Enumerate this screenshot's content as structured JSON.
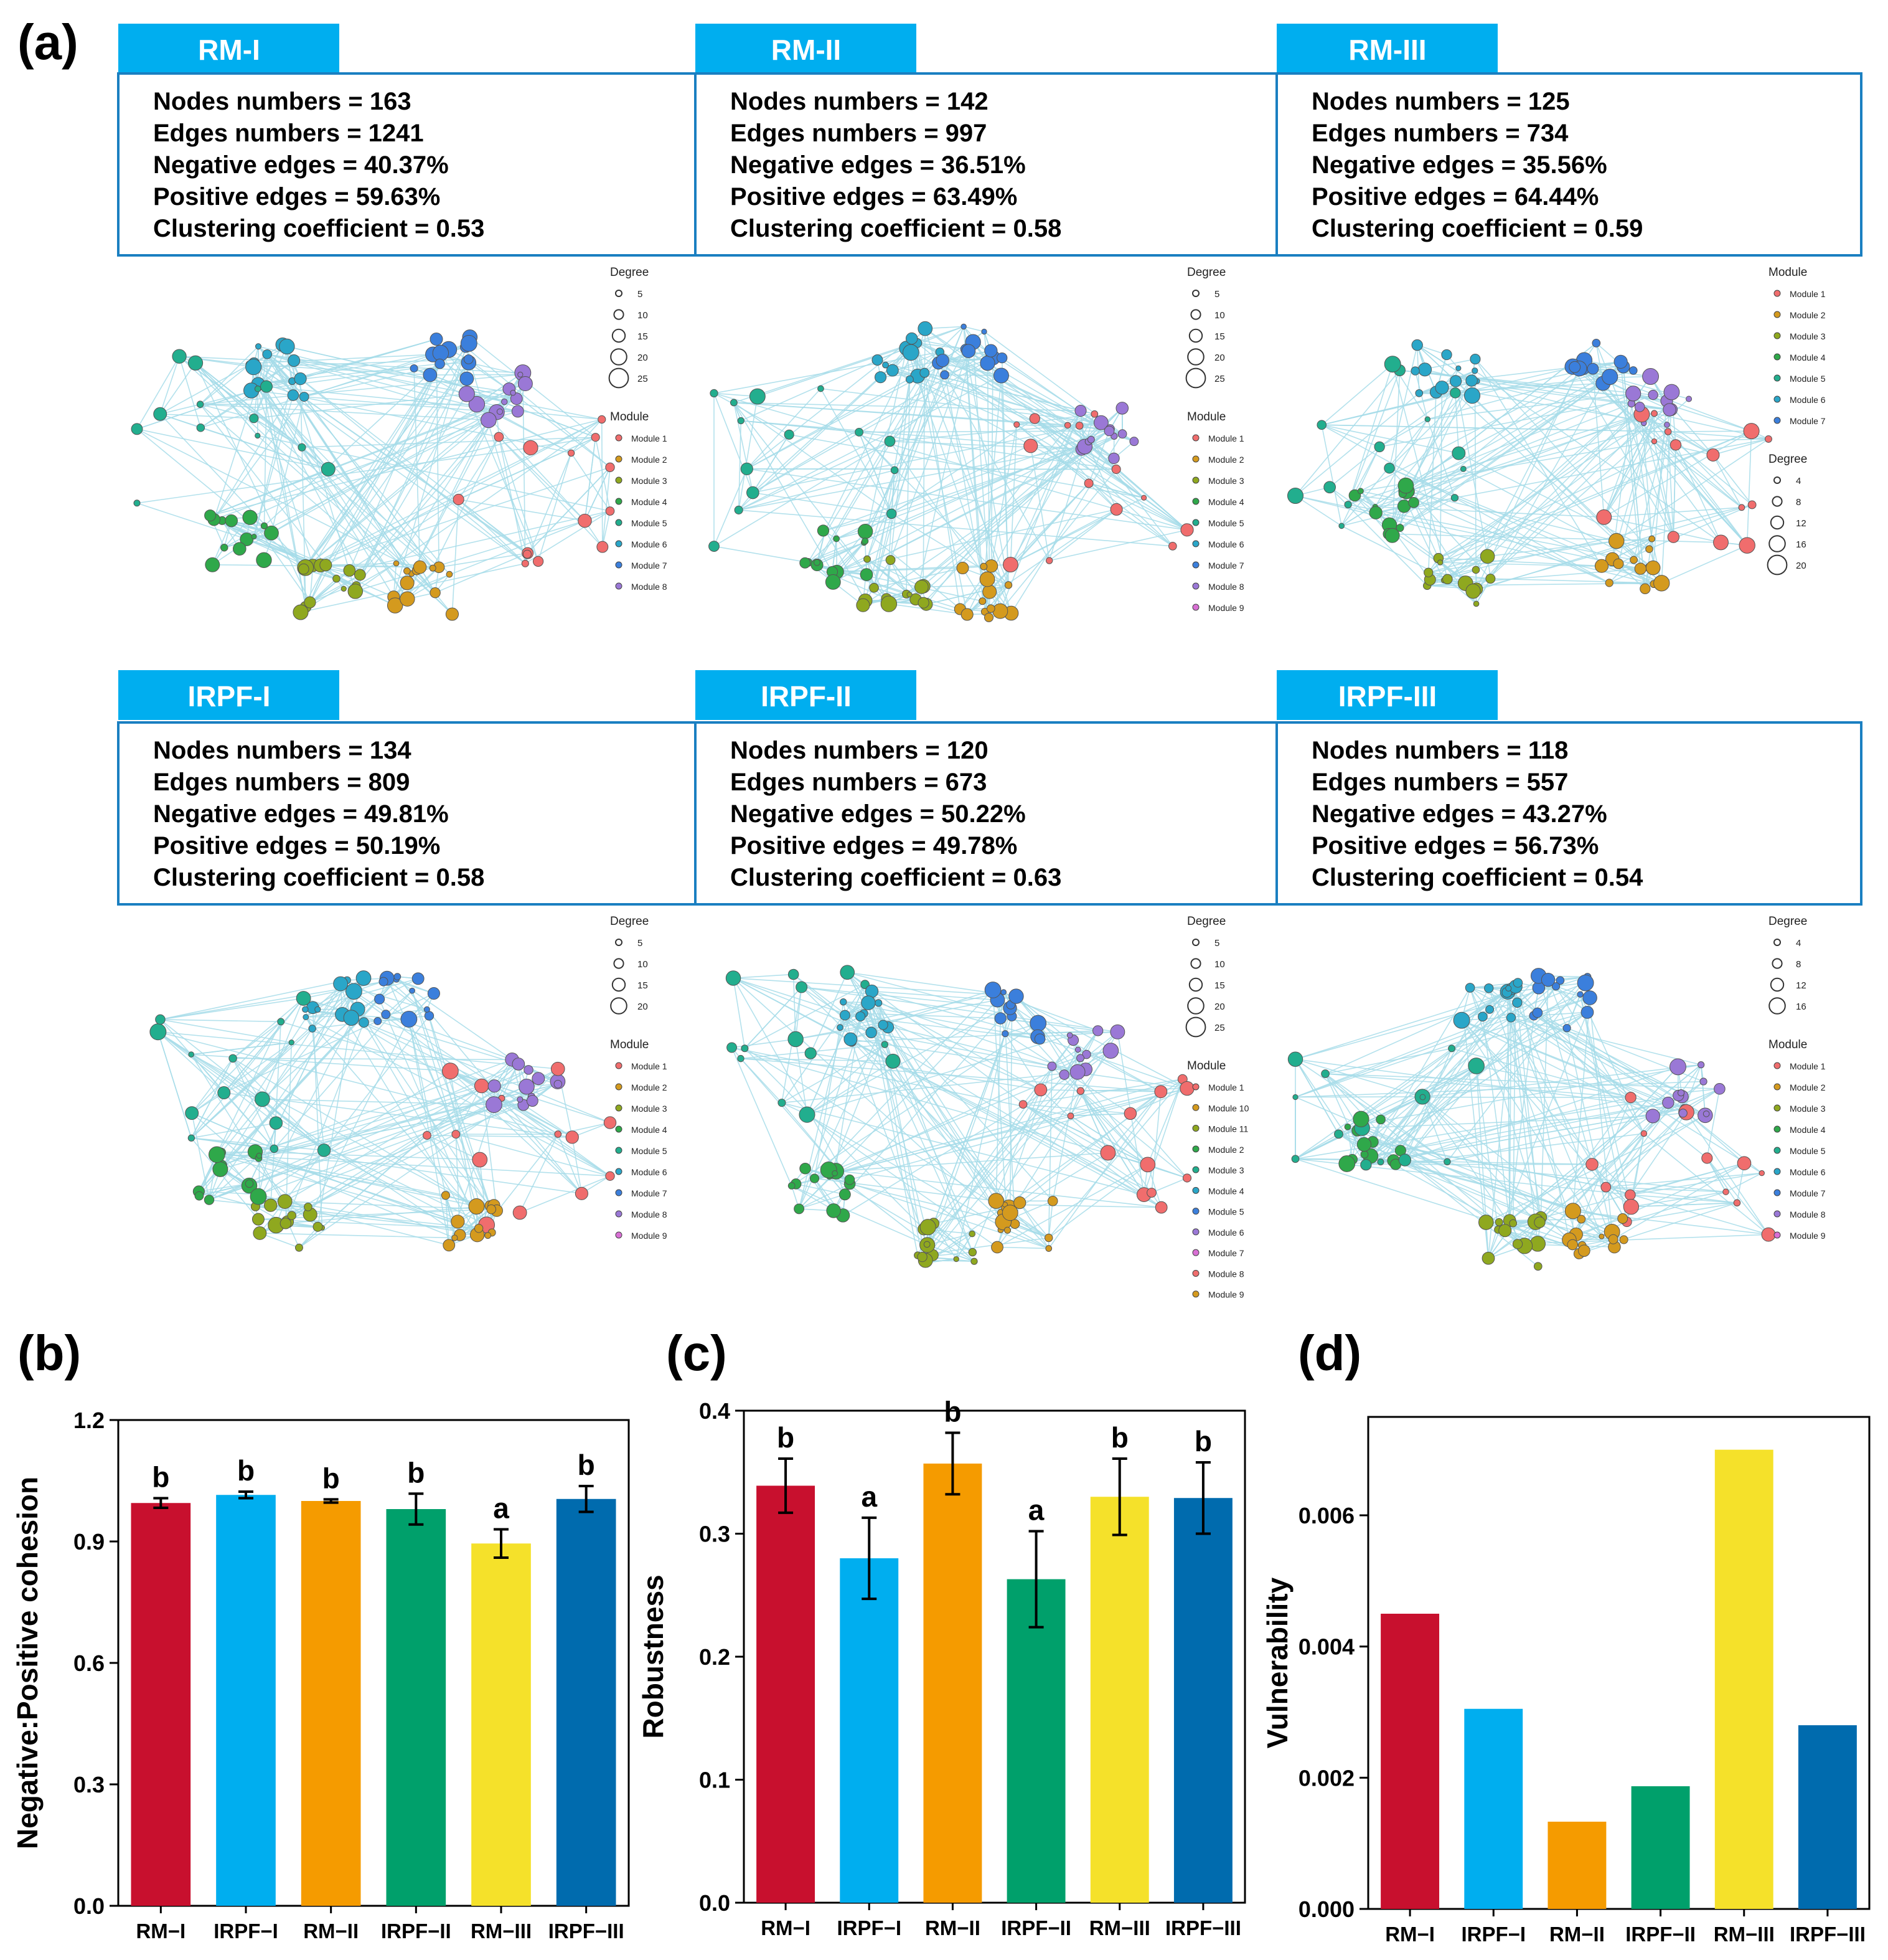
{
  "panel_labels": [
    "(a)",
    "(b)",
    "(c)",
    "(d)"
  ],
  "colors": {
    "edge": "#a6dce9",
    "box_border": "#1a7fc1",
    "tab_fill": "#00aeef",
    "RM-I": "#c8102e",
    "IRPF-I": "#00aeef",
    "RM-II": "#f59b00",
    "IRPF-II": "#00a06b",
    "RM-III": "#f5e12a",
    "IRPF-III": "#006bae",
    "modules": [
      "#f06d6d",
      "#d49a1e",
      "#8fa81f",
      "#2fa84a",
      "#22ae8e",
      "#2aa6c8",
      "#3b7fdc",
      "#9a78d6",
      "#d86fd4"
    ]
  },
  "networks": [
    {
      "title": "RM-I",
      "stats": [
        "Nodes numbers = 163",
        "Edges numbers = 1241",
        "Negative edges = 40.37%",
        "Positive edges = 59.63%",
        "Clustering coefficient = 0.53"
      ],
      "legend": [
        {
          "heading": "Degree",
          "items": [
            "5",
            "10",
            "15",
            "20",
            "25"
          ]
        },
        {
          "heading": "Module",
          "items": [
            "Module 1",
            "Module 2",
            "Module 3",
            "Module 4",
            "Module 5",
            "Module 6",
            "Module 7",
            "Module 8"
          ]
        }
      ]
    },
    {
      "title": "RM-II",
      "stats": [
        "Nodes numbers = 142",
        "Edges numbers = 997",
        "Negative edges = 36.51%",
        "Positive edges = 63.49%",
        "Clustering coefficient = 0.58"
      ],
      "legend": [
        {
          "heading": "Degree",
          "items": [
            "5",
            "10",
            "15",
            "20",
            "25"
          ]
        },
        {
          "heading": "Module",
          "items": [
            "Module 1",
            "Module 2",
            "Module 3",
            "Module 4",
            "Module 5",
            "Module 6",
            "Module 7",
            "Module 8",
            "Module 9"
          ]
        }
      ]
    },
    {
      "title": "RM-III",
      "stats": [
        "Nodes numbers = 125",
        "Edges numbers = 734",
        "Negative edges = 35.56%",
        "Positive edges = 64.44%",
        "Clustering coefficient = 0.59"
      ],
      "legend": [
        {
          "heading": "Module",
          "items": [
            "Module 1",
            "Module 2",
            "Module 3",
            "Module 4",
            "Module 5",
            "Module 6",
            "Module 7"
          ]
        },
        {
          "heading": "Degree",
          "items": [
            "4",
            "8",
            "12",
            "16",
            "20"
          ]
        }
      ]
    },
    {
      "title": "IRPF-I",
      "stats": [
        "Nodes numbers = 134",
        "Edges numbers = 809",
        "Negative edges = 49.81%",
        "Positive edges = 50.19%",
        "Clustering coefficient = 0.58"
      ],
      "legend": [
        {
          "heading": "Degree",
          "items": [
            "5",
            "10",
            "15",
            "20"
          ]
        },
        {
          "heading": "Module",
          "items": [
            "Module 1",
            "Module 2",
            "Module 3",
            "Module 4",
            "Module 5",
            "Module 6",
            "Module 7",
            "Module 8",
            "Module 9"
          ]
        }
      ]
    },
    {
      "title": "IRPF-II",
      "stats": [
        "Nodes numbers = 120",
        "Edges numbers = 673",
        "Negative edges = 50.22%",
        "Positive edges = 49.78%",
        "Clustering coefficient = 0.63"
      ],
      "legend": [
        {
          "heading": "Degree",
          "items": [
            "5",
            "10",
            "15",
            "20",
            "25"
          ]
        },
        {
          "heading": "Module",
          "items": [
            "Module 1",
            "Module 10",
            "Module 11",
            "Module 2",
            "Module 3",
            "Module 4",
            "Module 5",
            "Module 6",
            "Module 7",
            "Module 8",
            "Module 9"
          ]
        }
      ]
    },
    {
      "title": "IRPF-III",
      "stats": [
        "Nodes numbers = 118",
        "Edges numbers = 557",
        "Negative edges = 43.27%",
        "Positive edges = 56.73%",
        "Clustering coefficient = 0.54"
      ],
      "legend": [
        {
          "heading": "Degree",
          "items": [
            "4",
            "8",
            "12",
            "16"
          ]
        },
        {
          "heading": "Module",
          "items": [
            "Module 1",
            "Module 2",
            "Module 3",
            "Module 4",
            "Module 5",
            "Module 6",
            "Module 7",
            "Module 8",
            "Module 9"
          ]
        }
      ]
    }
  ],
  "chart_data": [
    {
      "type": "bar",
      "panel": "(b)",
      "title": "",
      "categories": [
        "RM−I",
        "IRPF−I",
        "RM−II",
        "IRPF−II",
        "RM−III",
        "IRPF−III"
      ],
      "color_keys": [
        "RM-I",
        "IRPF-I",
        "RM-II",
        "IRPF-II",
        "RM-III",
        "IRPF-III"
      ],
      "values": [
        0.995,
        1.015,
        1.0,
        0.98,
        0.895,
        1.005
      ],
      "errors": [
        0.012,
        0.008,
        0.004,
        0.038,
        0.035,
        0.032
      ],
      "letters": [
        "b",
        "b",
        "b",
        "b",
        "a",
        "b"
      ],
      "xlabel": "",
      "ylabel": "Negative:Positive cohesion",
      "ylim": [
        0,
        1.2
      ],
      "yticks": [
        0.0,
        0.3,
        0.6,
        0.9,
        1.2
      ],
      "ytick_labels": [
        "0.0",
        "0.3",
        "0.6",
        "0.9",
        "1.2"
      ]
    },
    {
      "type": "bar",
      "panel": "(c)",
      "title": "",
      "categories": [
        "RM−I",
        "IRPF−I",
        "RM−II",
        "IRPF−II",
        "RM−III",
        "IRPF−III"
      ],
      "color_keys": [
        "RM-I",
        "IRPF-I",
        "RM-II",
        "IRPF-II",
        "RM-III",
        "IRPF-III"
      ],
      "values": [
        0.339,
        0.28,
        0.357,
        0.263,
        0.33,
        0.329
      ],
      "errors": [
        0.022,
        0.033,
        0.025,
        0.039,
        0.031,
        0.029
      ],
      "letters": [
        "b",
        "a",
        "b",
        "a",
        "b",
        "b"
      ],
      "xlabel": "",
      "ylabel": "Robustness",
      "ylim": [
        0,
        0.4
      ],
      "yticks": [
        0.0,
        0.1,
        0.2,
        0.3,
        0.4
      ],
      "ytick_labels": [
        "0.0",
        "0.1",
        "0.2",
        "0.3",
        "0.4"
      ]
    },
    {
      "type": "bar",
      "panel": "(d)",
      "title": "",
      "categories": [
        "RM−I",
        "IRPF−I",
        "RM−II",
        "IRPF−II",
        "RM−III",
        "IRPF−III"
      ],
      "color_keys": [
        "RM-I",
        "IRPF-I",
        "RM-II",
        "IRPF-II",
        "RM-III",
        "IRPF-III"
      ],
      "values": [
        0.0045,
        0.00305,
        0.00133,
        0.00187,
        0.007,
        0.0028
      ],
      "xlabel": "",
      "ylabel": "Vulnerability",
      "ylim": [
        0,
        0.0075
      ],
      "yticks": [
        0.0,
        0.002,
        0.004,
        0.006
      ],
      "ytick_labels": [
        "0.000",
        "0.002",
        "0.004",
        "0.006"
      ]
    }
  ]
}
